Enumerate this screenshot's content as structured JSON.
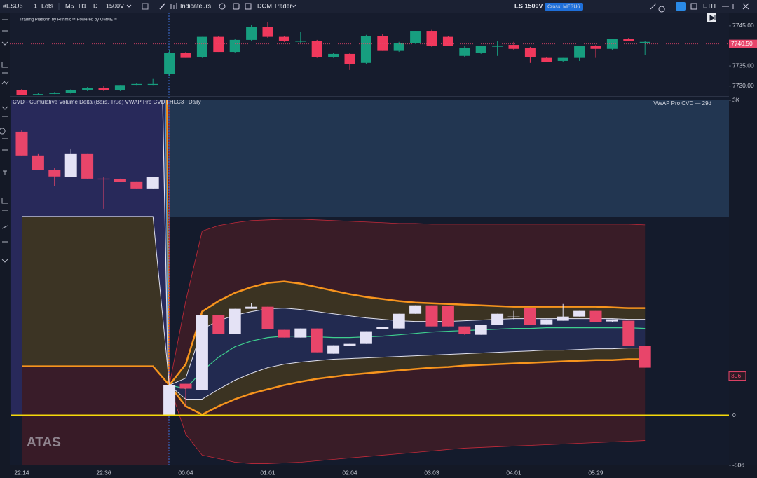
{
  "toolbar": {
    "symbol": "#ESU6",
    "lots_qty": "1",
    "lots": "Lots",
    "timeframes": [
      "M5",
      "H1",
      "D"
    ],
    "chart_type": "1500V",
    "indicators": "Indicateurs",
    "dom_trader": "DOM Trader",
    "instrument": "ES 1500V",
    "cross": "Cross: MESU6",
    "session": "ETH"
  },
  "chart_data": [
    {
      "type": "candlestick",
      "subtitle": "Trading Platform by Rithmic™ Powered by OMNE™",
      "open": [
        7729,
        7728,
        7728.25,
        7728.25,
        7729,
        7729.5,
        7729,
        7730.5,
        7730.5,
        7733,
        7738.25,
        7737.25,
        7742.25,
        7738.5,
        7741.5,
        7744.75,
        7742.25,
        7741.25,
        7741.25,
        7737.25,
        7738,
        7735.75,
        7742.5,
        7738.75,
        7740.75,
        7743.75,
        7742.25,
        7737.5,
        7738.25,
        7740,
        7740.25,
        7739.5,
        7737,
        7736.25,
        7737,
        7740,
        7739.25,
        7741.75,
        7741
      ],
      "high": [
        7729.25,
        7728.25,
        7728.5,
        7729.25,
        7729.75,
        7730,
        7730.25,
        7730.75,
        7731.75,
        7739,
        7738.5,
        7742.25,
        7742.5,
        7741.75,
        7745.25,
        7746,
        7742.5,
        7743.5,
        7741.5,
        7738.25,
        7738.25,
        7742.75,
        7743,
        7741,
        7743.75,
        7744,
        7742.5,
        7740,
        7740,
        7741.25,
        7741,
        7739.75,
        7737.25,
        7737,
        7740,
        7740.25,
        7741.75,
        7742,
        7741.25
      ],
      "low": [
        7727.75,
        7727.75,
        7728,
        7728,
        7728.75,
        7728.75,
        7728.75,
        7730.25,
        7730.25,
        7732.5,
        7737,
        7737,
        7738.5,
        7738.25,
        7741.25,
        7742,
        7741,
        7740.75,
        7737,
        7737,
        7734,
        7735.5,
        7738.75,
        7738.5,
        7740.5,
        7739.75,
        7740,
        7737.25,
        7738,
        7737.5,
        7739,
        7735.75,
        7736,
        7736,
        7736.25,
        7737,
        7739,
        7741.25,
        7737.75
      ],
      "close": [
        7727.75,
        7728,
        7728.25,
        7729,
        7729.5,
        7729,
        7730.25,
        7730.5,
        7730.5,
        7738.25,
        7737,
        7742.25,
        7738.5,
        7741.5,
        7744.75,
        7742.25,
        7741.25,
        7741.25,
        7737.25,
        7738,
        7735.5,
        7742.5,
        7738.75,
        7740.75,
        7743.75,
        7740,
        7740,
        7739.5,
        7740,
        7740,
        7739.25,
        7737.25,
        7736,
        7737,
        7740,
        7739.25,
        7741.75,
        7741.25,
        7741
      ],
      "up_color": "#179e7f",
      "down_color": "#f0385c",
      "ylim": [
        7727.5,
        7748.3
      ],
      "yticks": [
        {
          "value": 7745,
          "label": "7745.00"
        },
        {
          "value": 7735,
          "label": "7735.00"
        },
        {
          "value": 7730,
          "label": "7730.00"
        }
      ],
      "last_price": {
        "value": 7740.5,
        "label": "7740.50"
      },
      "last_price_color": "#e8456a"
    },
    {
      "type": "candlestick",
      "title": "CVD - Cumulative Volume Delta (Bars, True) VWAP Pro CVD | HLC3 | Daily",
      "annotation": "VWAP Pro CVD — 29d",
      "watermark": "ATAS",
      "categories": [
        "22:14",
        null,
        null,
        null,
        null,
        "22:36",
        null,
        null,
        null,
        null,
        "00:04",
        null,
        null,
        null,
        null,
        "01:01",
        null,
        null,
        null,
        null,
        "02:04",
        null,
        null,
        null,
        null,
        "03:03",
        null,
        null,
        null,
        null,
        "04:01",
        null,
        null,
        null,
        null,
        "05:29",
        null,
        null,
        null
      ],
      "open": [
        2864,
        2624,
        2475,
        2404,
        2638,
        2390,
        2383,
        2362,
        2291,
        0,
        318,
        255,
        1011,
        820,
        1075,
        1096,
        863,
        785,
        877,
        622,
        700,
        721,
        870,
        877,
        1025,
        1110,
        1103,
        898,
        813,
        912,
        997,
        1082,
        919,
        955,
        997,
        1054,
        948,
        955,
        700
      ],
      "high": [
        2885,
        2638,
        2496,
        2694,
        2638,
        2404,
        2390,
        2362,
        2404,
        318,
        318,
        1011,
        1011,
        1075,
        1132,
        1096,
        863,
        877,
        877,
        707,
        721,
        849,
        891,
        1025,
        1110,
        1110,
        1103,
        898,
        912,
        1025,
        1054,
        1082,
        969,
        1124,
        1054,
        1054,
        969,
        955,
        700
      ],
      "low": [
        2624,
        2475,
        2313,
        2404,
        2390,
        2086,
        2355,
        2291,
        2291,
        0,
        92,
        255,
        820,
        820,
        1075,
        870,
        785,
        785,
        636,
        622,
        700,
        721,
        870,
        877,
        1025,
        898,
        898,
        813,
        813,
        912,
        969,
        912,
        919,
        955,
        997,
        941,
        941,
        700,
        481
      ],
      "close": [
        2624,
        2475,
        2412,
        2638,
        2390,
        2383,
        2355,
        2291,
        2404,
        304,
        269,
        1011,
        820,
        1075,
        1096,
        870,
        785,
        877,
        636,
        707,
        721,
        849,
        891,
        1025,
        1110,
        898,
        898,
        820,
        912,
        1025,
        997,
        912,
        969,
        997,
        1054,
        941,
        969,
        700,
        481
      ],
      "up_color": "#e4e2f5",
      "down_color": "#e8456a",
      "series": [
        {
          "color": "#c62a3a",
          "values": [
            null,
            null,
            null,
            null,
            null,
            null,
            null,
            null,
            null,
            304,
            1153,
            1860,
            1916,
            1945,
            1966,
            1973,
            1980,
            1980,
            1973,
            1966,
            1959,
            1952,
            1945,
            1937,
            1937,
            1930,
            1930,
            1930,
            1930,
            1930,
            1930,
            1930,
            1930,
            1930,
            1930,
            1930,
            1930,
            1930,
            1923
          ]
        },
        {
          "color": "#f7941d",
          "values": [
            null,
            null,
            null,
            null,
            null,
            null,
            null,
            null,
            null,
            304,
            516,
            1047,
            1153,
            1237,
            1294,
            1337,
            1351,
            1330,
            1294,
            1258,
            1223,
            1195,
            1174,
            1153,
            1138,
            1131,
            1124,
            1117,
            1110,
            1103,
            1096,
            1096,
            1096,
            1096,
            1096,
            1096,
            1089,
            1082,
            1082
          ]
        },
        {
          "color": "#dfe0ee",
          "values": [
            2008,
            2008,
            2008,
            2008,
            2008,
            2008,
            2008,
            2008,
            2008,
            304,
            375,
            870,
            955,
            1011,
            1047,
            1075,
            1082,
            1068,
            1047,
            1025,
            1004,
            983,
            969,
            955,
            948,
            948,
            948,
            955,
            962,
            969,
            976,
            976,
            976,
            976,
            976,
            976,
            976,
            969,
            969
          ]
        },
        {
          "color": "#3ecf8e",
          "values": [
            null,
            null,
            null,
            null,
            null,
            null,
            null,
            null,
            null,
            304,
            269,
            446,
            587,
            693,
            750,
            785,
            799,
            799,
            792,
            785,
            785,
            792,
            799,
            813,
            827,
            841,
            849,
            856,
            863,
            870,
            877,
            877,
            884,
            884,
            884,
            884,
            884,
            884,
            877
          ]
        },
        {
          "color": "#dfe0ee",
          "values": [
            null,
            null,
            null,
            null,
            null,
            null,
            null,
            null,
            null,
            304,
            163,
            163,
            262,
            354,
            424,
            481,
            516,
            537,
            552,
            566,
            573,
            580,
            587,
            594,
            601,
            608,
            615,
            622,
            629,
            636,
            643,
            650,
            658,
            658,
            665,
            672,
            672,
            679,
            679
          ]
        },
        {
          "color": "#f7941d",
          "values": [
            495,
            495,
            495,
            495,
            495,
            495,
            495,
            495,
            495,
            304,
            92,
            7,
            92,
            163,
            219,
            262,
            304,
            339,
            368,
            389,
            410,
            424,
            438,
            453,
            467,
            481,
            488,
            502,
            509,
            516,
            523,
            530,
            537,
            544,
            551,
            558,
            558,
            566,
            566
          ]
        },
        {
          "color": "#c62a3a",
          "values": [
            null,
            null,
            null,
            null,
            null,
            null,
            null,
            null,
            null,
            304,
            -191,
            -403,
            -438,
            -474,
            -488,
            -488,
            -481,
            -474,
            -460,
            -446,
            -431,
            -417,
            -403,
            -389,
            -375,
            -361,
            -346,
            -332,
            -325,
            -318,
            -311,
            -304,
            -297,
            -290,
            -283,
            -276,
            -269,
            -262,
            -255
          ]
        }
      ],
      "ylim": [
        -506,
        3182
      ],
      "yticks": [
        {
          "value": 3182,
          "label": "3K"
        },
        0,
        -506
      ],
      "baseline_color": "#f5d90a",
      "last_value": 396,
      "last_value_color": "#e8456a"
    }
  ]
}
